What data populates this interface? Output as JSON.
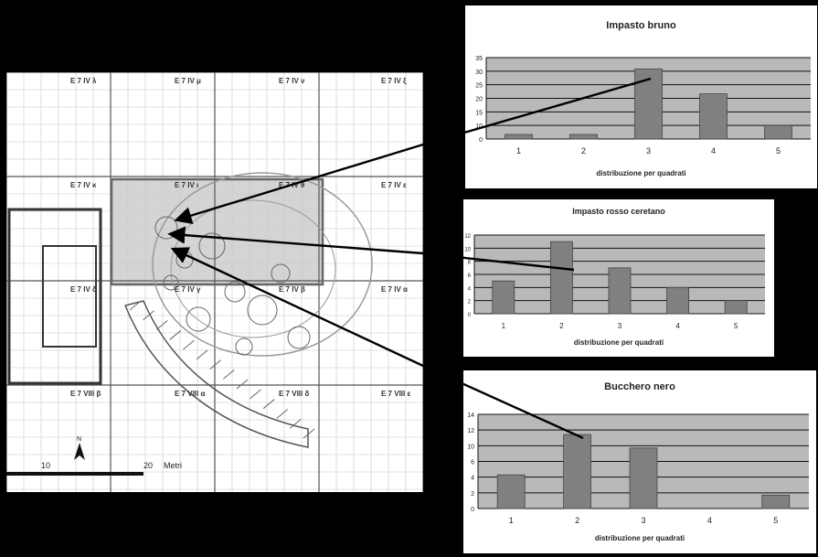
{
  "map": {
    "grid_labels": [
      "E 7 IV λ",
      "E 7 IV μ",
      "E 7 IV ν",
      "E 7 IV ξ",
      "E 7 IV κ",
      "E 7 IV ι",
      "E 7 IV θ",
      "E 7 IV ε",
      "E 7 IV δ",
      "E 7 IV γ",
      "E 7 IV β",
      "E 7 IV α",
      "E 7 VIII β",
      "E 7 VIII α",
      "E 7 VIII δ",
      "E 7 VIII ε"
    ],
    "scale_labels": [
      "10",
      "20",
      "Metri"
    ],
    "north_label": "N"
  },
  "chart_data": [
    {
      "type": "bar",
      "title": "Impasto bruno",
      "xlabel": "distribuzione per quadrati",
      "categories": [
        "1",
        "2",
        "3",
        "4",
        "5"
      ],
      "values": [
        2,
        2,
        31,
        20,
        6
      ],
      "ylim": [
        0,
        36
      ],
      "yticks": [
        "0",
        "10",
        "15",
        "20",
        "25",
        "30",
        "35"
      ],
      "grid": true
    },
    {
      "type": "bar",
      "title": "Impasto rosso ceretano",
      "xlabel": "distribuzione per quadrati",
      "categories": [
        "1",
        "2",
        "3",
        "4",
        "5"
      ],
      "values": [
        5,
        11,
        7,
        4,
        2
      ],
      "ylim": [
        0,
        12
      ],
      "yticks": [
        "0",
        "2",
        "4",
        "6",
        "8",
        "10",
        "12"
      ],
      "grid": true
    },
    {
      "type": "bar",
      "title": "Bucchero nero",
      "xlabel": "distribuzione per quadrati",
      "categories": [
        "1",
        "2",
        "3",
        "4",
        "5"
      ],
      "values": [
        5,
        11,
        9,
        0,
        2
      ],
      "ylim": [
        0,
        14
      ],
      "yticks": [
        "0",
        "2",
        "4",
        "6",
        "10",
        "12",
        "14"
      ],
      "grid": true
    }
  ],
  "colors": {
    "plot_bg": "#b9b9b9",
    "bar": "#808080",
    "map_line": "#9a9a9a",
    "highlight": "#bdbdbd"
  }
}
